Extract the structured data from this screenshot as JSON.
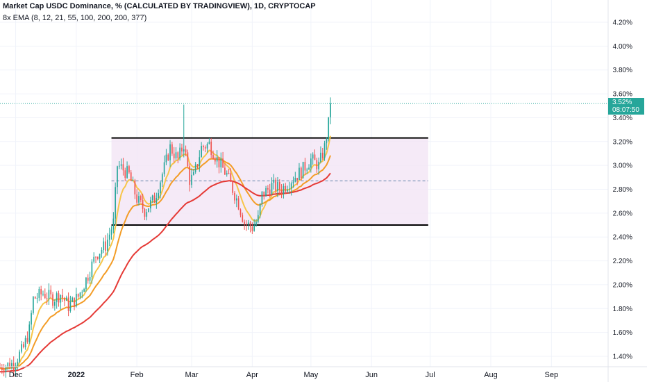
{
  "header": {
    "title": "Market Cap USDC Dominance, % (CALCULATED BY TRADINGVIEW), 1D, CRYPTOCAP",
    "subtitle": "8x EMA (8, 12, 21, 55, 100, 200, 200, 377)"
  },
  "price_badge": {
    "value": "3.52%",
    "countdown": "08:07:50",
    "color": "#26a69a"
  },
  "chart_data": {
    "type": "candlestick",
    "title": "Market Cap USDC Dominance, % (CALCULATED BY TRADINGVIEW), 1D, CRYPTOCAP",
    "y_unit": "%",
    "ylim": [
      1.3,
      4.35
    ],
    "y_ticks": [
      "1.40%",
      "1.60%",
      "1.80%",
      "2.00%",
      "2.20%",
      "2.40%",
      "2.60%",
      "2.80%",
      "3.00%",
      "3.20%",
      "3.40%",
      "3.60%",
      "3.80%",
      "4.00%",
      "4.20%"
    ],
    "x_ticks": [
      "Dec",
      "2022",
      "Feb",
      "Mar",
      "Apr",
      "May",
      "Jun",
      "Jul",
      "Aug",
      "Sep"
    ],
    "x_range": [
      "2021-11-23",
      "2022-09-30"
    ],
    "last_price": 3.52,
    "up_color": "#26a69a",
    "down_color": "#ef5350",
    "close_anchors": [
      [
        "2021-11-23",
        1.31
      ],
      [
        "2021-11-30",
        1.34
      ],
      [
        "2021-12-05",
        1.47
      ],
      [
        "2021-12-08",
        1.62
      ],
      [
        "2021-12-10",
        1.88
      ],
      [
        "2021-12-15",
        1.93
      ],
      [
        "2021-12-20",
        1.88
      ],
      [
        "2021-12-24",
        1.92
      ],
      [
        "2021-12-28",
        1.82
      ],
      [
        "2022-01-02",
        1.9
      ],
      [
        "2022-01-07",
        2.08
      ],
      [
        "2022-01-11",
        2.25
      ],
      [
        "2022-01-16",
        2.33
      ],
      [
        "2022-01-20",
        2.52
      ],
      [
        "2022-01-22",
        3.0
      ],
      [
        "2022-01-24",
        2.98
      ],
      [
        "2022-01-28",
        2.92
      ],
      [
        "2022-02-01",
        2.72
      ],
      [
        "2022-02-05",
        2.62
      ],
      [
        "2022-02-10",
        2.72
      ],
      [
        "2022-02-15",
        2.98
      ],
      [
        "2022-02-18",
        3.15
      ],
      [
        "2022-02-22",
        3.05
      ],
      [
        "2022-02-25",
        3.18
      ],
      [
        "2022-02-28",
        2.88
      ],
      [
        "2022-03-02",
        2.9
      ],
      [
        "2022-03-06",
        3.15
      ],
      [
        "2022-03-10",
        3.18
      ],
      [
        "2022-03-14",
        3.05
      ],
      [
        "2022-03-19",
        2.92
      ],
      [
        "2022-03-25",
        2.68
      ],
      [
        "2022-03-28",
        2.52
      ],
      [
        "2022-04-01",
        2.48
      ],
      [
        "2022-04-04",
        2.55
      ],
      [
        "2022-04-06",
        2.75
      ],
      [
        "2022-04-11",
        2.83
      ],
      [
        "2022-04-16",
        2.8
      ],
      [
        "2022-04-21",
        2.88
      ],
      [
        "2022-04-26",
        2.95
      ],
      [
        "2022-05-01",
        3.05
      ],
      [
        "2022-05-05",
        3.0
      ],
      [
        "2022-05-08",
        3.15
      ],
      [
        "2022-05-10",
        3.35
      ],
      [
        "2022-05-11",
        3.52
      ]
    ],
    "ema_periods": [
      8,
      12,
      21,
      55,
      100,
      200,
      200,
      377
    ],
    "drawn_ema_colors": [
      "#f7c549",
      "#f39c26",
      "#e53935"
    ],
    "channel": {
      "upper": 3.23,
      "lower": 2.5,
      "mid": 2.87,
      "start": "2022-01-19",
      "end": "2022-06-30",
      "fill": "#f3e5f5"
    },
    "markers": {
      "spike_high": 3.51,
      "spike_date": "2022-02-25"
    }
  }
}
